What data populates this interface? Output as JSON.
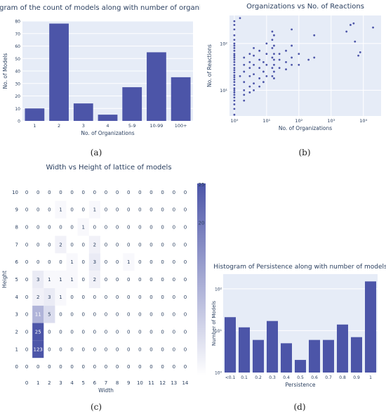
{
  "captions": [
    "(a)",
    "(b)",
    "(c)",
    "(d)"
  ],
  "chart_data": [
    {
      "type": "bar",
      "title": "Histogram of the count of models along with number of organizations",
      "xlabel": "No. of Organizations",
      "ylabel": "No. of Models",
      "categories": [
        "1",
        "2",
        "3",
        "4",
        "5-9",
        "10-99",
        "100+"
      ],
      "values": [
        10,
        78,
        14,
        5,
        27,
        55,
        35
      ],
      "ylim": [
        0,
        80
      ],
      "yticks": [
        0,
        10,
        20,
        30,
        40,
        50,
        60,
        70,
        80
      ],
      "color": "#4c55a8",
      "grid": true
    },
    {
      "type": "scatter",
      "title": "Organizations vs No. of Reactions",
      "xlabel": "No. of Organizations",
      "ylabel": "No. of Reactions",
      "xscale": "log",
      "yscale": "log",
      "xticks": [
        "10⁰",
        "10¹",
        "10²",
        "10³",
        "10⁴"
      ],
      "yticks": [
        "10¹",
        "10²"
      ],
      "color": "#4c55a8",
      "points": [
        [
          1,
          300
        ],
        [
          1,
          250
        ],
        [
          1,
          200
        ],
        [
          1,
          150
        ],
        [
          1,
          120
        ],
        [
          1,
          100
        ],
        [
          1,
          90
        ],
        [
          1,
          80
        ],
        [
          1,
          70
        ],
        [
          1,
          60
        ],
        [
          1,
          55
        ],
        [
          1,
          50
        ],
        [
          1,
          45
        ],
        [
          1,
          40
        ],
        [
          1,
          35
        ],
        [
          1,
          30
        ],
        [
          1,
          27
        ],
        [
          1,
          24
        ],
        [
          1,
          21
        ],
        [
          1,
          19
        ],
        [
          1,
          17
        ],
        [
          1,
          15
        ],
        [
          1,
          13
        ],
        [
          1,
          11
        ],
        [
          1,
          10
        ],
        [
          1,
          9
        ],
        [
          1,
          8
        ],
        [
          1,
          7
        ],
        [
          1,
          6
        ],
        [
          1,
          5
        ],
        [
          1,
          4
        ],
        [
          1,
          3
        ],
        [
          1.5,
          350
        ],
        [
          1.5,
          20
        ],
        [
          2,
          50
        ],
        [
          2,
          35
        ],
        [
          2,
          25
        ],
        [
          2,
          15
        ],
        [
          2,
          10
        ],
        [
          2,
          8
        ],
        [
          2,
          6
        ],
        [
          3,
          60
        ],
        [
          3,
          40
        ],
        [
          3,
          30
        ],
        [
          3,
          20
        ],
        [
          3,
          12
        ],
        [
          3,
          9
        ],
        [
          4,
          80
        ],
        [
          4,
          55
        ],
        [
          4,
          35
        ],
        [
          4,
          22
        ],
        [
          4,
          14
        ],
        [
          4,
          10
        ],
        [
          6,
          70
        ],
        [
          6,
          45
        ],
        [
          6,
          30
        ],
        [
          6,
          18
        ],
        [
          6,
          12
        ],
        [
          8,
          40
        ],
        [
          8,
          25
        ],
        [
          8,
          15
        ],
        [
          10,
          100
        ],
        [
          10,
          60
        ],
        [
          10,
          35
        ],
        [
          10,
          20
        ],
        [
          15,
          180
        ],
        [
          15,
          120
        ],
        [
          15,
          80
        ],
        [
          15,
          50
        ],
        [
          15,
          30
        ],
        [
          15,
          20
        ],
        [
          17,
          150
        ],
        [
          17,
          90
        ],
        [
          17,
          60
        ],
        [
          17,
          45
        ],
        [
          17,
          35
        ],
        [
          17,
          25
        ],
        [
          17,
          18
        ],
        [
          25,
          60
        ],
        [
          25,
          45
        ],
        [
          25,
          30
        ],
        [
          40,
          70
        ],
        [
          40,
          40
        ],
        [
          40,
          28
        ],
        [
          60,
          200
        ],
        [
          60,
          90
        ],
        [
          60,
          50
        ],
        [
          60,
          35
        ],
        [
          100,
          60
        ],
        [
          100,
          35
        ],
        [
          200,
          45
        ],
        [
          300,
          150
        ],
        [
          300,
          50
        ],
        [
          3000,
          180
        ],
        [
          4000,
          250
        ],
        [
          5000,
          270
        ],
        [
          5500,
          110
        ],
        [
          7000,
          55
        ],
        [
          8000,
          65
        ],
        [
          20000,
          220
        ]
      ]
    },
    {
      "type": "heatmap",
      "title": "Width vs Height of lattice of models",
      "xlabel": "Width",
      "ylabel": "Height",
      "x": [
        0,
        1,
        2,
        3,
        4,
        5,
        6,
        7,
        8,
        9,
        10,
        11,
        12,
        13,
        14
      ],
      "y": [
        0,
        1,
        2,
        3,
        4,
        5,
        6,
        7,
        8,
        9,
        10
      ],
      "z": [
        [
          0,
          0,
          0,
          0,
          0,
          0,
          0,
          0,
          0,
          0,
          0,
          0,
          0,
          0,
          0
        ],
        [
          0,
          123,
          0,
          0,
          0,
          0,
          0,
          0,
          0,
          0,
          0,
          0,
          0,
          0,
          0
        ],
        [
          0,
          25,
          0,
          0,
          0,
          0,
          0,
          0,
          0,
          0,
          0,
          0,
          0,
          0,
          0
        ],
        [
          0,
          11,
          5,
          0,
          0,
          0,
          0,
          0,
          0,
          0,
          0,
          0,
          0,
          0,
          0
        ],
        [
          0,
          2,
          3,
          1,
          0,
          0,
          0,
          0,
          0,
          0,
          0,
          0,
          0,
          0,
          0
        ],
        [
          0,
          3,
          1,
          1,
          1,
          0,
          2,
          0,
          0,
          0,
          0,
          0,
          0,
          0,
          0
        ],
        [
          0,
          0,
          0,
          0,
          1,
          0,
          3,
          0,
          0,
          1,
          0,
          0,
          0,
          0,
          0
        ],
        [
          0,
          0,
          0,
          2,
          0,
          0,
          2,
          0,
          0,
          0,
          0,
          0,
          0,
          0,
          0
        ],
        [
          0,
          0,
          0,
          0,
          0,
          1,
          0,
          0,
          0,
          0,
          0,
          0,
          0,
          0,
          0
        ],
        [
          0,
          0,
          0,
          1,
          0,
          0,
          1,
          0,
          0,
          0,
          0,
          0,
          0,
          0,
          0
        ],
        [
          0,
          0,
          0,
          0,
          0,
          0,
          0,
          0,
          0,
          0,
          0,
          0,
          0,
          0,
          0
        ]
      ],
      "zmax": 25,
      "colorbar_ticks": [
        "25",
        "20"
      ],
      "colorscale": [
        "#ffffff",
        "#4c55a8"
      ]
    },
    {
      "type": "bar",
      "title": "Histogram of Persistence along with number of models",
      "xlabel": "Persistence",
      "ylabel": "Number of Models",
      "yscale": "log",
      "categories": [
        "<0.1",
        "0.1",
        "0.2",
        "0.3",
        "0.4",
        "0.5",
        "0.6",
        "0.7",
        "0.8",
        "0.9",
        "1"
      ],
      "values": [
        21,
        12,
        6,
        17,
        5,
        2,
        6,
        6,
        14,
        7,
        150
      ],
      "yticks": [
        "10⁰",
        "10¹",
        "10²"
      ],
      "color": "#4c55a8",
      "grid": true
    }
  ]
}
